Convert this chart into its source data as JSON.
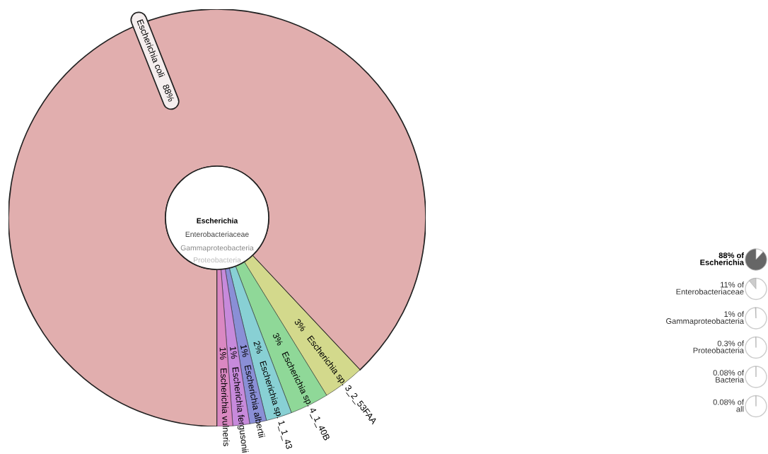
{
  "chart_data": [
    {
      "type": "donut",
      "categories": [
        "Escherichia coli",
        "Escherichia sp. 3_2_53FAA",
        "Escherichia sp. 4_1_40B",
        "Escherichia sp. 1_1_43",
        "Escherichia albertii",
        "Escherichia fergusonii",
        "Escherichia vulneris"
      ],
      "values": [
        88,
        3.2,
        3,
        2,
        1.3,
        1.3,
        1.2
      ],
      "value_labels": [
        "88%",
        "3%",
        "3%",
        "2%",
        "1%",
        "1%",
        "1%"
      ],
      "colors": [
        "#e1aeae",
        "#d3d98c",
        "#8fd898",
        "#88d0d4",
        "#8a8fd6",
        "#c78adb",
        "#da88c2"
      ],
      "annotations": [
        "Escherichia",
        "Enterobacteriaceae",
        "Gammaproteobacteria",
        "Proteobacteria"
      ]
    },
    {
      "type": "other",
      "categories": [
        "Escherichia",
        "Enterobacteriaceae",
        "Gammaproteobacteria",
        "Proteobacteria",
        "Bacteria",
        "all"
      ],
      "values": [
        88,
        11,
        1,
        0.3,
        0.08,
        0.08
      ],
      "value_labels": [
        "88% of",
        "11% of",
        "1% of",
        "0.3% of",
        "0.08% of",
        "0.08% of"
      ],
      "colors": [
        "#666666",
        "#cccccc",
        "#cccccc",
        "#cccccc",
        "#cccccc",
        "#cccccc"
      ]
    }
  ]
}
